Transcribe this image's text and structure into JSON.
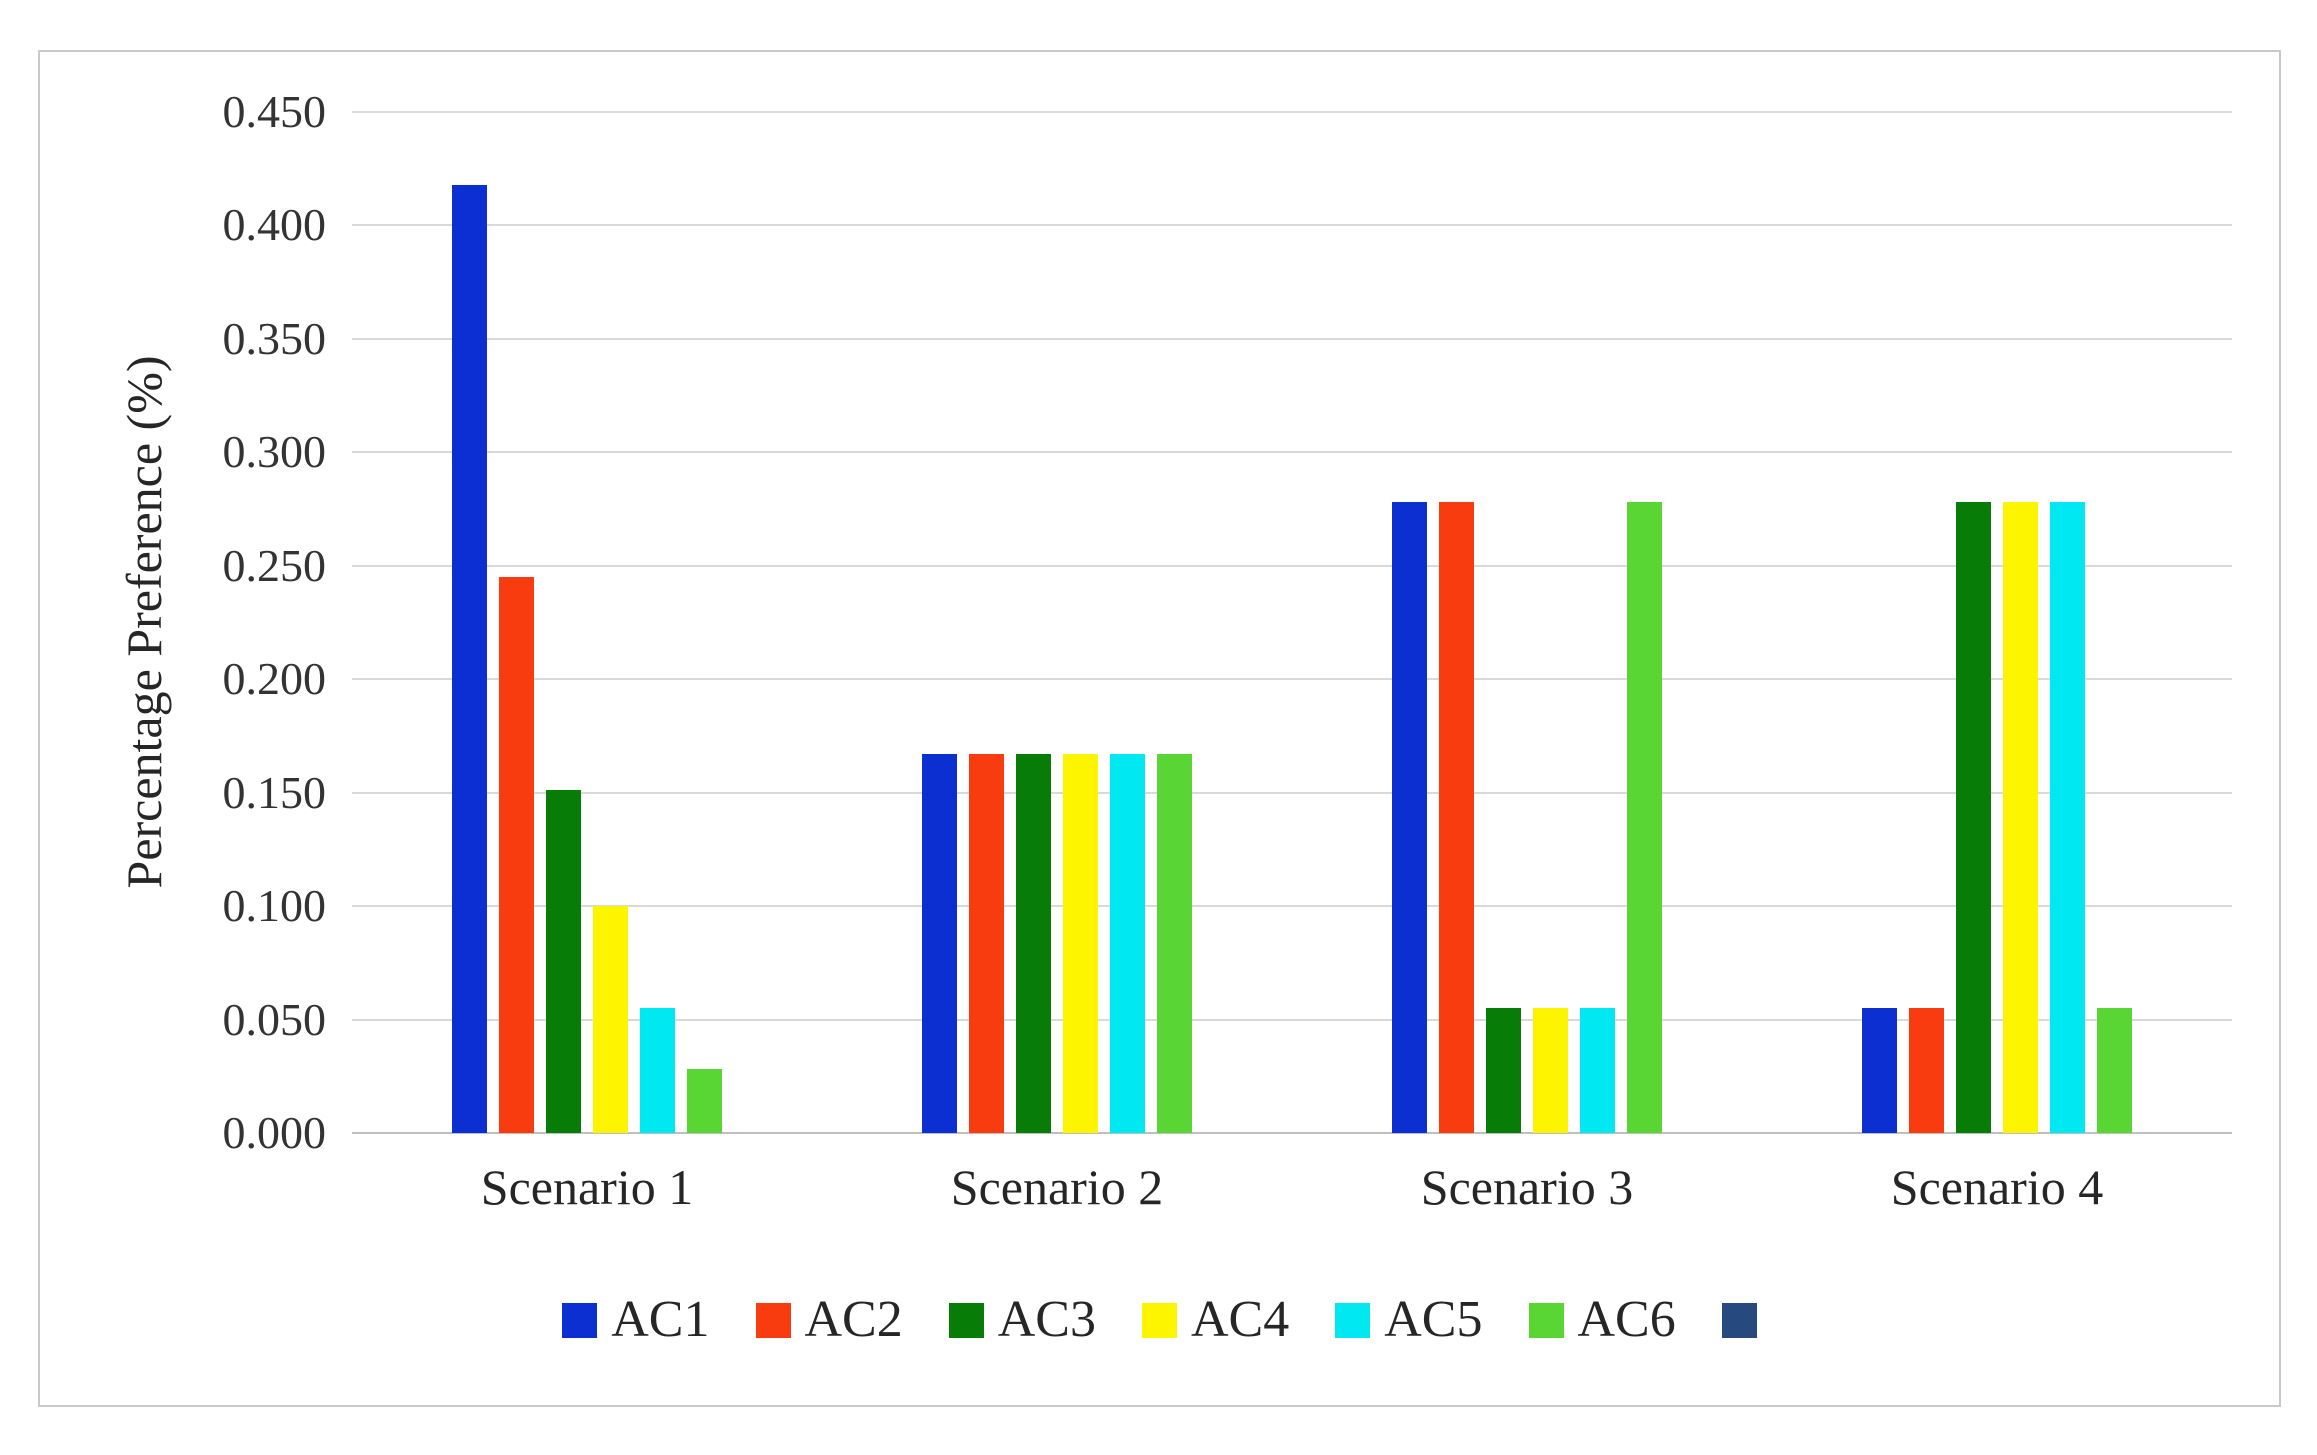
{
  "chart_data": {
    "type": "bar",
    "title": "",
    "ylabel": "Percentage Preference (%)",
    "xlabel": "",
    "ylim": [
      0,
      0.45
    ],
    "ytick_step": 0.05,
    "yticks": [
      "0.000",
      "0.050",
      "0.100",
      "0.150",
      "0.200",
      "0.250",
      "0.300",
      "0.350",
      "0.400",
      "0.450"
    ],
    "categories": [
      "Scenario 1",
      "Scenario 2",
      "Scenario 3",
      "Scenario 4"
    ],
    "series": [
      {
        "name": "AC1",
        "color": "#0b2fd1",
        "values": [
          0.418,
          0.167,
          0.278,
          0.055
        ]
      },
      {
        "name": "AC2",
        "color": "#f93b10",
        "values": [
          0.245,
          0.167,
          0.278,
          0.055
        ]
      },
      {
        "name": "AC3",
        "color": "#077c07",
        "values": [
          0.151,
          0.167,
          0.055,
          0.278
        ]
      },
      {
        "name": "AC4",
        "color": "#fdf400",
        "values": [
          0.1,
          0.167,
          0.055,
          0.278
        ]
      },
      {
        "name": "AC5",
        "color": "#00e9f2",
        "values": [
          0.055,
          0.167,
          0.055,
          0.278
        ]
      },
      {
        "name": "AC6",
        "color": "#59d633",
        "values": [
          0.028,
          0.167,
          0.278,
          0.055
        ]
      }
    ],
    "legend_position": "bottom",
    "legend_extra_swatch_color": "#264a7d",
    "grid": true,
    "plot_bg": "#ffffff",
    "gridline_color": "#d9d9d9"
  }
}
